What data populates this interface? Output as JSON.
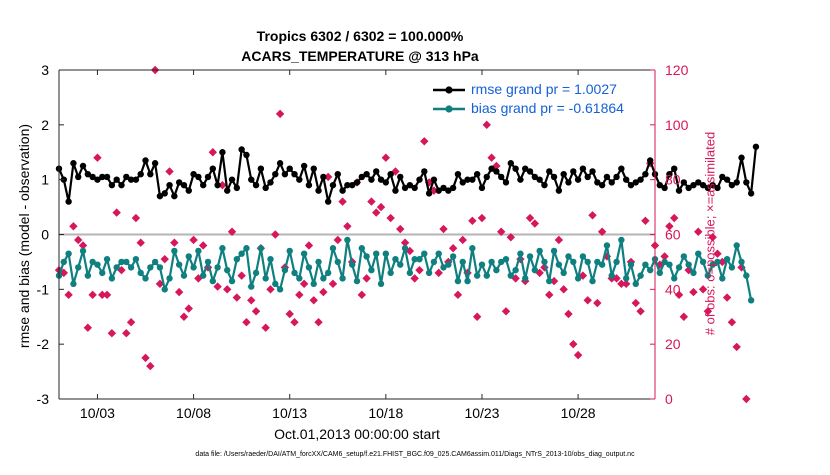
{
  "title_line1": "Tropics 6302 / 6302 = 100.000%",
  "title_line2": "ACARS_TEMPERATURE @ 313 hPa",
  "xlabel": "Oct.01,2013 00:00:00 start",
  "ylabel_left": "rmse and bias (model - observation)",
  "ylabel_right": "# of obs: o=possible; ×=assimilated",
  "footer": "data file: /Users/raeder/DAI/ATM_forcXX/CAM6_setup/f.e21.FHIST_BGC.f09_025.CAM6assim.011/Diags_NTrS_2013-10/obs_diag_output.nc",
  "colors": {
    "rmse": "#000000",
    "bias": "#0f7f80",
    "nobs": "#d6175b",
    "legend_text": "#1560d6",
    "zero_line": "#b4b4b4"
  },
  "chart_data": {
    "type": "line",
    "x_start_day": 1,
    "x_step_days": 0.25,
    "xlim": [
      1.0,
      32.0
    ],
    "ylim_left": [
      -3,
      3
    ],
    "ylim_right": [
      0,
      120
    ],
    "yticks_left": [
      -3,
      -2,
      -1,
      0,
      1,
      2,
      3
    ],
    "yticks_right": [
      0,
      20,
      40,
      60,
      80,
      100,
      120
    ],
    "xtick_days": [
      3,
      8,
      13,
      18,
      23,
      28
    ],
    "xtick_labels": [
      "10/03",
      "10/08",
      "10/13",
      "10/18",
      "10/23",
      "10/28"
    ],
    "series": [
      {
        "name": "rmse grand pr = 1.0027",
        "axis": "left",
        "values": [
          1.2,
          1.0,
          0.6,
          1.3,
          1.05,
          1.25,
          1.1,
          1.05,
          1.0,
          1.05,
          1.05,
          0.9,
          1.0,
          0.9,
          1.05,
          1.0,
          1.0,
          1.1,
          1.35,
          1.1,
          1.3,
          0.7,
          0.75,
          0.9,
          0.7,
          0.95,
          0.9,
          0.8,
          1.1,
          1.05,
          0.9,
          1.05,
          1.2,
          0.9,
          1.5,
          0.8,
          1.0,
          0.85,
          1.55,
          1.45,
          1.0,
          0.9,
          1.2,
          0.85,
          0.95,
          1.1,
          1.3,
          1.1,
          1.2,
          1.1,
          1.0,
          1.25,
          0.9,
          1.2,
          0.8,
          1.05,
          0.6,
          0.9,
          1.1,
          0.8,
          0.9,
          0.9,
          0.95,
          1.05,
          1.1,
          1.0,
          1.15,
          1.0,
          0.95,
          1.1,
          0.8,
          1.05,
          0.85,
          0.9,
          0.85,
          1.0,
          1.15,
          0.75,
          1.0,
          0.8,
          0.85,
          0.8,
          0.85,
          1.1,
          0.95,
          1.0,
          1.0,
          1.1,
          0.85,
          1.05,
          1.2,
          1.15,
          1.05,
          0.95,
          1.3,
          1.2,
          1.0,
          1.2,
          1.15,
          1.05,
          1.0,
          0.9,
          1.15,
          1.05,
          0.8,
          1.1,
          0.95,
          1.15,
          1.0,
          1.2,
          1.05,
          1.15,
          0.95,
          0.9,
          1.05,
          0.95,
          1.05,
          1.2,
          1.0,
          0.9,
          0.95,
          1.0,
          1.1,
          1.35,
          1.1,
          0.9,
          0.85,
          1.1,
          1.2,
          0.8,
          0.95,
          0.85,
          0.9,
          0.95,
          0.9,
          0.85,
          0.9,
          0.85,
          1.05,
          1.0,
          0.9,
          0.95,
          1.4,
          0.95,
          0.75,
          1.6
        ]
      },
      {
        "name": "bias grand pr = -0.61864",
        "axis": "left",
        "values": [
          -0.75,
          -0.5,
          -0.35,
          -0.9,
          -0.6,
          -0.3,
          -0.75,
          -0.5,
          -0.55,
          -0.7,
          -0.45,
          -0.8,
          -0.6,
          -0.5,
          -0.5,
          -0.6,
          -0.45,
          -0.7,
          -0.8,
          -0.6,
          -0.5,
          -0.6,
          -1.0,
          -0.8,
          -0.3,
          -0.55,
          -0.75,
          -0.4,
          -0.6,
          -0.3,
          -0.75,
          -0.5,
          -0.85,
          -0.6,
          -0.25,
          -0.65,
          -0.85,
          -0.45,
          -0.35,
          -0.25,
          -0.95,
          -0.7,
          -0.25,
          -0.8,
          -0.45,
          -0.9,
          -1.0,
          -0.65,
          -0.3,
          -0.7,
          -0.8,
          -0.35,
          -0.6,
          -0.9,
          -0.5,
          -0.8,
          -0.7,
          -0.25,
          -0.5,
          -0.8,
          -0.1,
          -0.55,
          -0.85,
          -0.25,
          -0.4,
          -0.65,
          -0.35,
          -0.9,
          -0.35,
          -0.7,
          -0.45,
          -0.55,
          -0.25,
          -0.7,
          -0.45,
          -0.45,
          -0.35,
          -0.7,
          -0.5,
          -0.35,
          -0.6,
          -0.55,
          -0.4,
          -0.85,
          -0.5,
          -0.85,
          -0.25,
          -0.75,
          -0.55,
          -0.75,
          -0.5,
          -0.65,
          -0.5,
          -0.45,
          -0.75,
          -0.65,
          -0.35,
          -0.8,
          -0.4,
          -0.65,
          -0.3,
          -0.5,
          -0.85,
          -0.3,
          -0.55,
          -0.7,
          -0.4,
          -0.5,
          -0.8,
          -0.4,
          -0.5,
          -0.85,
          -0.5,
          -0.55,
          -0.2,
          -0.75,
          -0.5,
          -0.1,
          -0.8,
          -0.55,
          -0.9,
          -0.75,
          -0.55,
          -0.65,
          -0.45,
          -0.7,
          -0.5,
          -0.55,
          -0.8,
          -0.6,
          -0.4,
          -0.55,
          -0.7,
          -0.35,
          -0.5,
          -0.75,
          -0.55,
          -0.5,
          -0.8,
          -0.45,
          -0.6,
          -0.2,
          -0.5,
          -0.75,
          -1.2
        ]
      },
      {
        "name": "nobs possible",
        "axis": "right",
        "values": [
          47,
          46,
          38,
          63,
          58,
          56,
          26,
          38,
          88,
          38,
          38,
          24,
          68,
          47,
          24,
          28,
          66,
          57,
          15,
          12,
          120,
          42,
          51,
          83,
          57,
          39,
          30,
          33,
          58,
          44,
          56,
          48,
          90,
          41,
          78,
          40,
          61,
          37,
          45,
          28,
          36,
          32,
          55,
          26,
          40,
          60,
          104,
          48,
          31,
          28,
          38,
          42,
          56,
          36,
          28,
          39,
          81,
          42,
          58,
          72,
          63,
          50,
          79,
          38,
          44,
          72,
          68,
          70,
          88,
          66,
          83,
          62,
          57,
          54,
          44,
          47,
          94,
          79,
          76,
          46,
          62,
          50,
          55,
          38,
          58,
          46,
          65,
          30,
          66,
          100,
          88,
          85,
          61,
          32,
          59,
          44,
          51,
          43,
          66,
          64,
          46,
          48,
          38,
          43,
          58,
          40,
          31,
          20,
          16,
          45,
          36,
          67,
          35,
          61,
          52,
          44,
          44,
          42,
          42,
          50,
          35,
          32,
          65,
          86,
          56,
          49,
          52,
          63,
          66,
          38,
          30,
          47,
          39,
          61,
          40,
          32,
          59,
          53,
          50,
          37,
          28,
          19,
          48,
          0
        ]
      }
    ]
  }
}
